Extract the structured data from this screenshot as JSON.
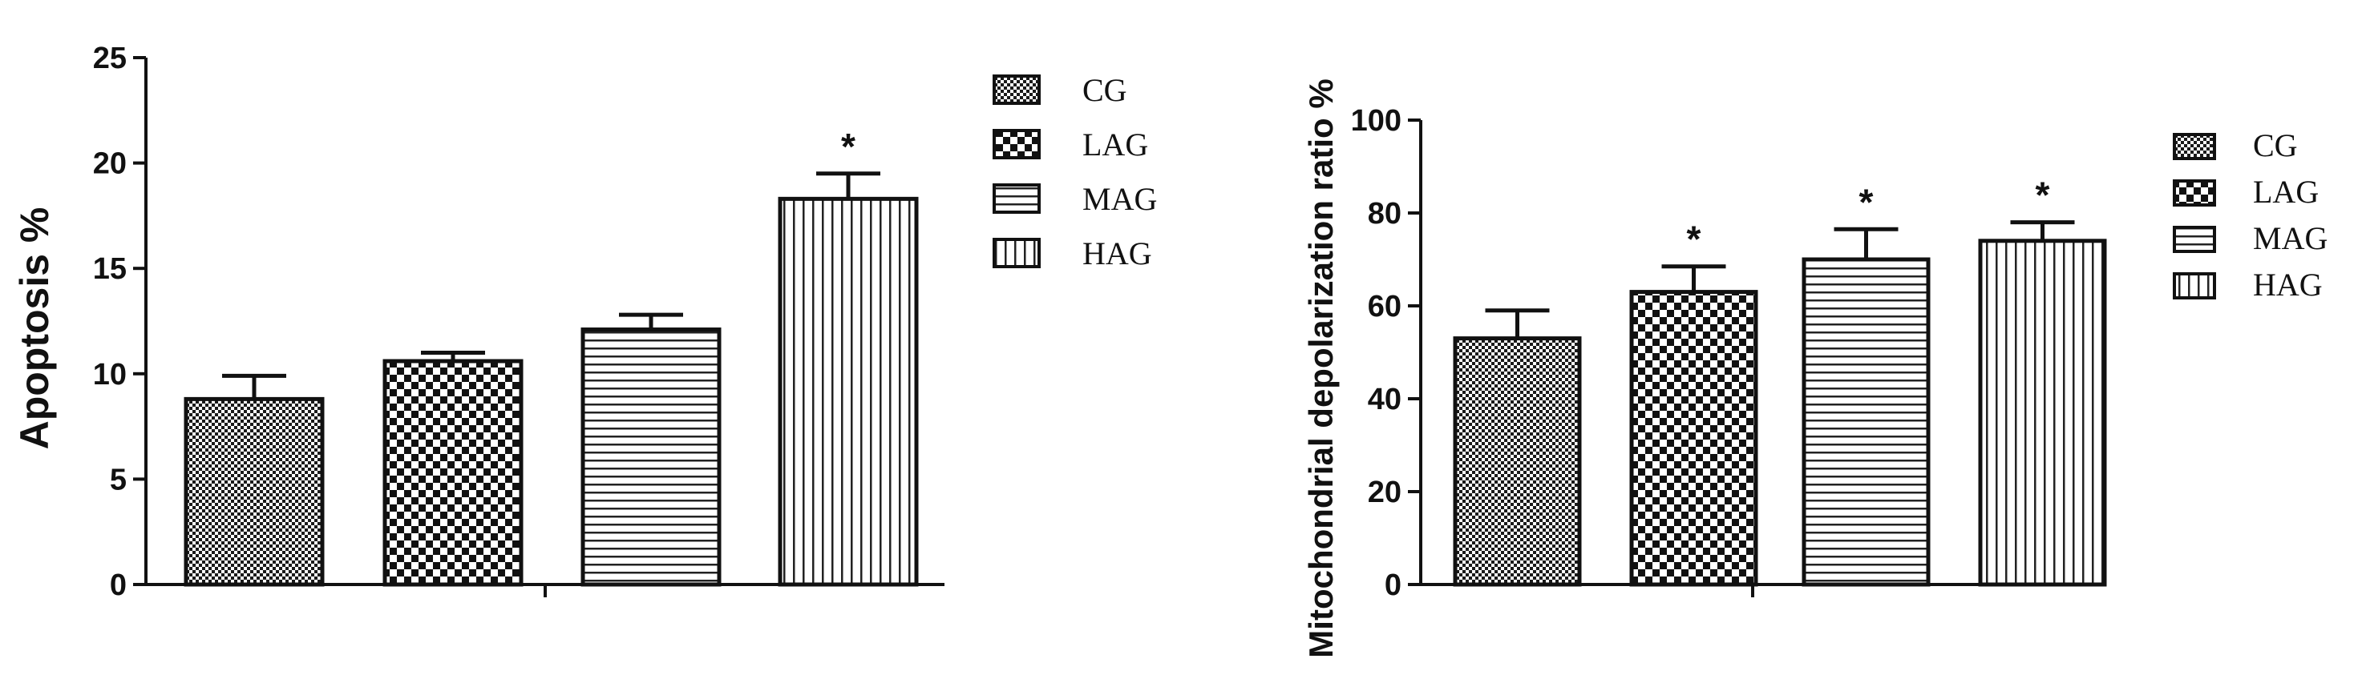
{
  "chart_data": [
    {
      "type": "bar",
      "categories": [
        "CG",
        "LAG",
        "MAG",
        "HAG"
      ],
      "values": [
        8.8,
        10.6,
        12.1,
        18.3
      ],
      "errors": [
        1.1,
        0.4,
        0.7,
        1.2
      ],
      "significance": [
        "",
        "",
        "",
        "*"
      ],
      "ylabel": "Apoptosis %",
      "ylim": [
        0,
        25
      ],
      "yticks": [
        "0",
        "5",
        "10",
        "15",
        "20",
        "25"
      ],
      "legend": [
        "CG",
        "LAG",
        "MAG",
        "HAG"
      ],
      "legend_position": "right",
      "grid": false
    },
    {
      "type": "bar",
      "categories": [
        "CG",
        "LAG",
        "MAG",
        "HAG"
      ],
      "values": [
        53,
        63,
        70,
        74
      ],
      "errors": [
        6,
        5.5,
        6.5,
        4
      ],
      "significance": [
        "",
        "*",
        "*",
        "*"
      ],
      "ylabel": "Mitochondrial depolarization ratio %",
      "ylim": [
        0,
        100
      ],
      "yticks": [
        "0",
        "20",
        "40",
        "60",
        "80",
        "100"
      ],
      "legend": [
        "CG",
        "LAG",
        "MAG",
        "HAG"
      ],
      "legend_position": "right",
      "grid": false
    }
  ]
}
